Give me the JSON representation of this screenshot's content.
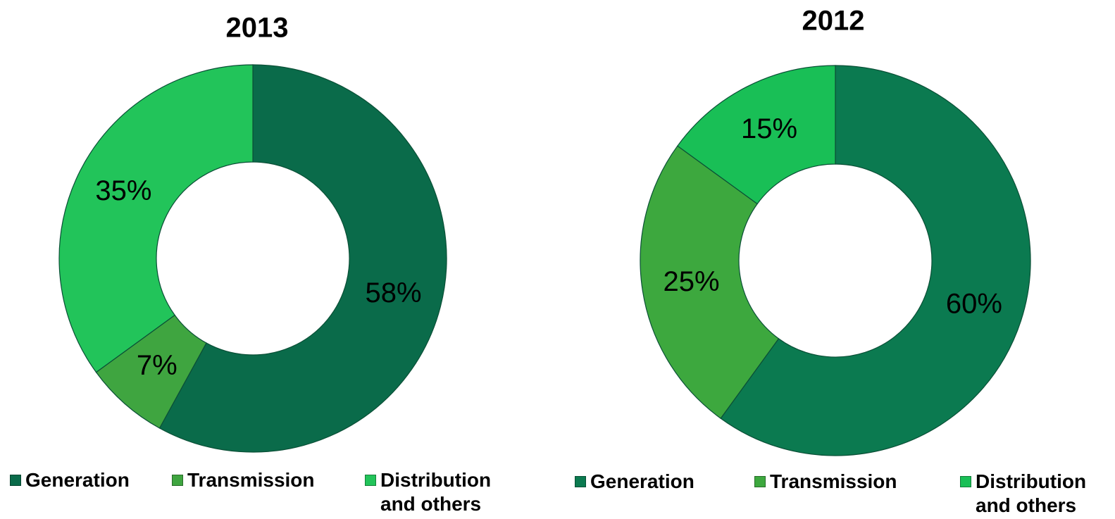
{
  "chart_data": [
    {
      "type": "donut",
      "title": "2013",
      "categories": [
        "Generation",
        "Transmission",
        "Distribution and others"
      ],
      "values": [
        58,
        7,
        35
      ],
      "value_labels": [
        "58%",
        "7%",
        "35%"
      ],
      "colors": [
        "#0a6b4a",
        "#3fa540",
        "#22c45a"
      ]
    },
    {
      "type": "donut",
      "title": "2012",
      "categories": [
        "Generation",
        "Transmission",
        "Distribution and others"
      ],
      "values": [
        60,
        25,
        15
      ],
      "value_labels": [
        "60%",
        "25%",
        "15%"
      ],
      "colors": [
        "#0b7a50",
        "#3da83e",
        "#19bf56"
      ]
    }
  ]
}
